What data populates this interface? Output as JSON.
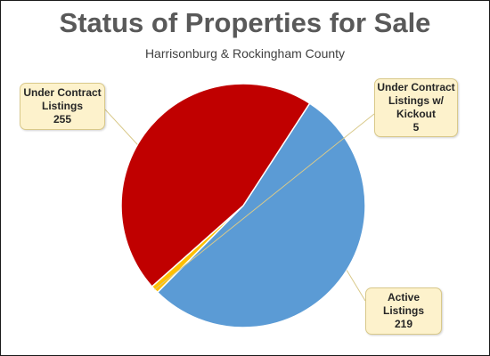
{
  "colors": {
    "under_contract": "#5b9bd5",
    "kickout": "#ffc000",
    "active": "#c00000",
    "callout_bg": "#fdf2cc"
  },
  "chart_data": {
    "type": "pie",
    "title": "Status of Properties for Sale",
    "subtitle": "Harrisonburg & Rockingham County",
    "slices": [
      {
        "label": "Under Contract Listings",
        "label_lines": [
          "Under Contract",
          "Listings"
        ],
        "value": 255,
        "color": "#5b9bd5"
      },
      {
        "label": "Under Contract Listings w/ Kickout",
        "label_lines": [
          "Under Contract",
          "Listings w/",
          "Kickout"
        ],
        "value": 5,
        "color": "#ffc000"
      },
      {
        "label": "Active Listings",
        "label_lines": [
          "Active Listings"
        ],
        "value": 219,
        "color": "#c00000"
      }
    ]
  }
}
